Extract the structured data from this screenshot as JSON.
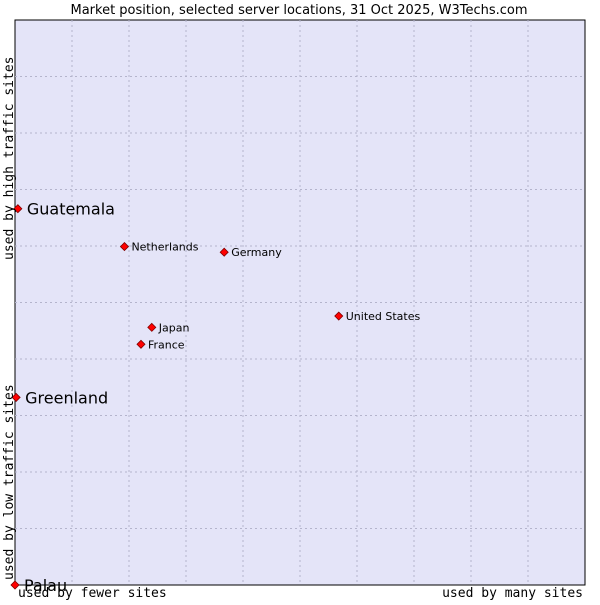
{
  "chart_data": {
    "type": "scatter",
    "title": "Market position, selected server locations, 31 Oct 2025, W3Techs.com",
    "xlabel_low": "used by fewer sites",
    "xlabel_high": "used by many sites",
    "ylabel_low": "used by low traffic sites",
    "ylabel_high": "used by high traffic sites",
    "grid": true,
    "xlim": [
      0,
      100
    ],
    "ylim": [
      0,
      100
    ],
    "marker_color": "#ff0000",
    "plot_background": "#e4e4f8",
    "points": [
      {
        "label": "Guatemala",
        "x": 0.5,
        "y": 66.6,
        "emphasis": true
      },
      {
        "label": "Netherlands",
        "x": 19.2,
        "y": 59.9,
        "emphasis": false
      },
      {
        "label": "Germany",
        "x": 36.7,
        "y": 58.9,
        "emphasis": false
      },
      {
        "label": "United States",
        "x": 56.8,
        "y": 47.6,
        "emphasis": false
      },
      {
        "label": "Japan",
        "x": 24.0,
        "y": 45.6,
        "emphasis": false
      },
      {
        "label": "France",
        "x": 22.1,
        "y": 42.6,
        "emphasis": false
      },
      {
        "label": "Greenland",
        "x": 0.2,
        "y": 33.2,
        "emphasis": true
      },
      {
        "label": "Palau",
        "x": 0.0,
        "y": 0.0,
        "emphasis": true
      }
    ]
  }
}
